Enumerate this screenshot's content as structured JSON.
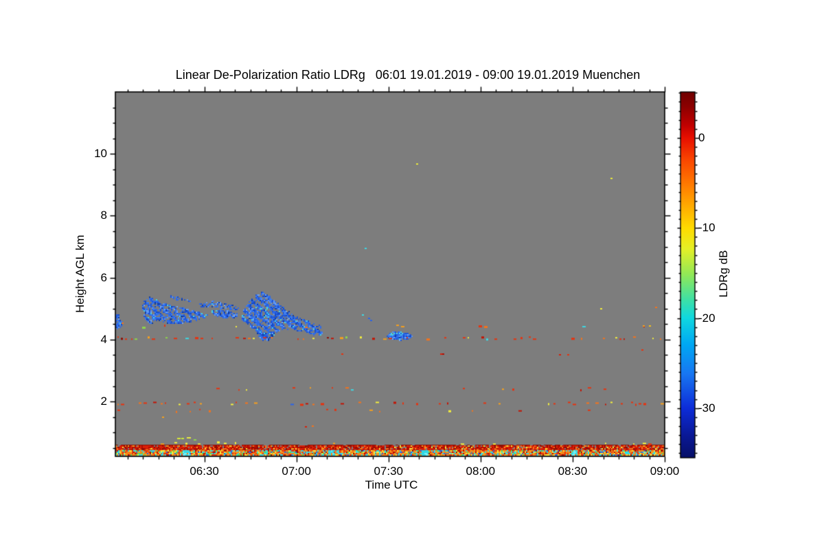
{
  "chart_data": {
    "type": "heatmap",
    "title": "Linear De-Polarization Ratio LDRg   06:01 19.01.2019 - 09:00 19.01.2019 Muenchen",
    "site": "Muenchen",
    "time_start": "06:01 19.01.2019",
    "time_end": "09:00 19.01.2019",
    "xlabel": "Time UTC",
    "ylabel": "Height AGL km",
    "x_range_minutes": [
      1,
      180
    ],
    "x_minor_step_minutes": 5,
    "x_ticks": [
      {
        "minute": 30,
        "label": "06:30"
      },
      {
        "minute": 60,
        "label": "07:00"
      },
      {
        "minute": 90,
        "label": "07:30"
      },
      {
        "minute": 120,
        "label": "08:00"
      },
      {
        "minute": 150,
        "label": "08:30"
      },
      {
        "minute": 180,
        "label": "09:00"
      }
    ],
    "y_range_km": [
      0.23,
      12.0
    ],
    "y_minor_step_km": 0.5,
    "y_ticks": [
      {
        "km": 10,
        "label": "10"
      },
      {
        "km": 8,
        "label": "8"
      },
      {
        "km": 6,
        "label": "6"
      },
      {
        "km": 4,
        "label": "4"
      },
      {
        "km": 2,
        "label": "2"
      }
    ],
    "grid": false,
    "legend": "colorbar-right",
    "colorbar": {
      "label": "LDRg dB",
      "range_db": [
        5.1,
        -35.5
      ],
      "minor_step_db": 1,
      "ticks": [
        {
          "db": 0,
          "label": "0"
        },
        {
          "db": -10,
          "label": "-10"
        },
        {
          "db": -20,
          "label": "-20"
        },
        {
          "db": -30,
          "label": "-30"
        }
      ],
      "gradient": [
        [
          0.0,
          "#700000"
        ],
        [
          0.04,
          "#8c0000"
        ],
        [
          0.09,
          "#c00000"
        ],
        [
          0.126,
          "#e81000"
        ],
        [
          0.19,
          "#fb4a00"
        ],
        [
          0.25,
          "#ff7800"
        ],
        [
          0.31,
          "#ffaa00"
        ],
        [
          0.373,
          "#ffdc00"
        ],
        [
          0.43,
          "#e4f028"
        ],
        [
          0.5,
          "#90e858"
        ],
        [
          0.57,
          "#3ce0a8"
        ],
        [
          0.618,
          "#10d8e0"
        ],
        [
          0.69,
          "#00a8f4"
        ],
        [
          0.77,
          "#1877f2"
        ],
        [
          0.865,
          "#0d2cd8"
        ],
        [
          0.94,
          "#0a1895"
        ],
        [
          1.0,
          "#071068"
        ]
      ]
    },
    "colors": {
      "background_no_signal": "#7d7d7d",
      "frame": "#000000",
      "page": "#ffffff",
      "cloud_blue": "#2e6ae8",
      "cyan_accent": "#45d5e6"
    },
    "palettes": {
      "blue_cloud": [
        [
          "#2e6ae8",
          0.33
        ],
        [
          "#1f55d6",
          0.2
        ],
        [
          "#3c7cee",
          0.15
        ],
        [
          "#174bc4",
          0.1
        ],
        [
          "#5b93f2",
          0.08
        ],
        [
          "#6fa6f5",
          0.05
        ],
        [
          "#123c9e",
          0.05
        ],
        [
          "#45d5e6",
          0.04
        ]
      ],
      "warm": [
        [
          "#e6330f",
          0.4
        ],
        [
          "#c21505",
          0.14
        ],
        [
          "#f4731c",
          0.18
        ],
        [
          "#f6a01e",
          0.1
        ],
        [
          "#f3ee3e",
          0.09
        ],
        [
          "#8fd64a",
          0.03
        ],
        [
          "#3cd9e4",
          0.03
        ],
        [
          "#2b63e8",
          0.02
        ],
        [
          "#8c0f04",
          0.01
        ]
      ],
      "yellow": [
        [
          "#f3ee3e",
          0.5
        ],
        [
          "#f6a01e",
          0.3
        ],
        [
          "#e6330f",
          0.1
        ],
        [
          "#8fd64a",
          0.1
        ]
      ],
      "red": [
        [
          "#d91f07",
          0.42
        ],
        [
          "#b00c02",
          0.2
        ],
        [
          "#8c0f04",
          0.13
        ],
        [
          "#f4731c",
          0.13
        ],
        [
          "#f6a01e",
          0.06
        ],
        [
          "#f3ee3e",
          0.03
        ],
        [
          "#7d7d7d",
          0.03
        ]
      ],
      "multi": [
        [
          "#f4821a",
          0.28
        ],
        [
          "#e6330f",
          0.14
        ],
        [
          "#f6a81e",
          0.12
        ],
        [
          "#3cd9e4",
          0.14
        ],
        [
          "#f3ee3e",
          0.1
        ],
        [
          "#b00c02",
          0.06
        ],
        [
          "#2b63e8",
          0.05
        ],
        [
          "#57dd52",
          0.05
        ],
        [
          "#8c0f04",
          0.03
        ],
        [
          "#0ee8f0",
          0.03
        ]
      ]
    },
    "features": {
      "clouds": [
        {
          "name": "edge-patch",
          "density": 0.85,
          "streaks": false,
          "polygon": [
            [
              1.0,
              4.81
            ],
            [
              1.9,
              4.85
            ],
            [
              2.6,
              4.76
            ],
            [
              2.1,
              4.65
            ],
            [
              3.0,
              4.59
            ],
            [
              3.7,
              4.52
            ],
            [
              2.8,
              4.41
            ],
            [
              1.7,
              4.34
            ],
            [
              1.0,
              4.39
            ]
          ]
        },
        {
          "name": "cloud-a",
          "density": 0.9,
          "streaks": true,
          "polygon": [
            [
              9.3,
              4.98
            ],
            [
              10.4,
              5.27
            ],
            [
              12.2,
              5.38
            ],
            [
              14.9,
              5.29
            ],
            [
              18.2,
              5.14
            ],
            [
              21.1,
              5.07
            ],
            [
              23.8,
              5.01
            ],
            [
              26.5,
              4.94
            ],
            [
              29.4,
              4.87
            ],
            [
              31.0,
              4.81
            ],
            [
              31.0,
              4.72
            ],
            [
              27.9,
              4.63
            ],
            [
              24.3,
              4.54
            ],
            [
              20.7,
              4.48
            ],
            [
              17.6,
              4.52
            ],
            [
              14.9,
              4.63
            ],
            [
              13.5,
              4.5
            ],
            [
              11.7,
              4.54
            ],
            [
              10.2,
              4.74
            ]
          ]
        },
        {
          "name": "cloud-a-wisp",
          "density": 0.55,
          "streaks": false,
          "polygon": [
            [
              18.9,
              5.43
            ],
            [
              22.4,
              5.36
            ],
            [
              25.4,
              5.28
            ],
            [
              25.4,
              5.21
            ],
            [
              21.8,
              5.26
            ],
            [
              18.9,
              5.32
            ]
          ]
        },
        {
          "name": "cloud-b-wisp",
          "density": 0.6,
          "streaks": false,
          "polygon": [
            [
              28.3,
              5.18
            ],
            [
              32.8,
              5.25
            ],
            [
              37.3,
              5.16
            ],
            [
              41.1,
              5.07
            ],
            [
              41.1,
              4.94
            ],
            [
              37.3,
              4.98
            ],
            [
              32.8,
              5.05
            ],
            [
              28.7,
              5.05
            ]
          ]
        },
        {
          "name": "cloud-b",
          "density": 0.85,
          "streaks": false,
          "polygon": [
            [
              32.1,
              4.94
            ],
            [
              35.0,
              4.98
            ],
            [
              37.9,
              4.94
            ],
            [
              40.6,
              4.85
            ],
            [
              41.1,
              4.76
            ],
            [
              39.0,
              4.67
            ],
            [
              35.5,
              4.7
            ],
            [
              32.8,
              4.81
            ]
          ]
        },
        {
          "name": "cloud-c",
          "density": 0.92,
          "streaks": true,
          "polygon": [
            [
              42.2,
              4.76
            ],
            [
              43.1,
              5.03
            ],
            [
              44.4,
              5.2
            ],
            [
              45.8,
              5.38
            ],
            [
              47.3,
              5.49
            ],
            [
              49.1,
              5.54
            ],
            [
              50.7,
              5.47
            ],
            [
              52.2,
              5.34
            ],
            [
              54.0,
              5.18
            ],
            [
              56.3,
              5.01
            ],
            [
              58.5,
              4.85
            ],
            [
              60.7,
              4.72
            ],
            [
              63.0,
              4.63
            ],
            [
              65.2,
              4.56
            ],
            [
              67.0,
              4.5
            ],
            [
              68.6,
              4.39
            ],
            [
              68.6,
              4.17
            ],
            [
              66.8,
              4.12
            ],
            [
              64.6,
              4.17
            ],
            [
              62.5,
              4.23
            ],
            [
              60.3,
              4.28
            ],
            [
              58.1,
              4.32
            ],
            [
              55.8,
              4.34
            ],
            [
              53.8,
              4.25
            ],
            [
              52.5,
              4.1
            ],
            [
              51.1,
              3.97
            ],
            [
              49.8,
              3.92
            ],
            [
              48.4,
              4.01
            ],
            [
              47.1,
              4.19
            ],
            [
              45.3,
              4.39
            ],
            [
              43.5,
              4.54
            ],
            [
              42.4,
              4.63
            ]
          ]
        },
        {
          "name": "blob-d",
          "density": 0.95,
          "streaks": false,
          "cyan_top": true,
          "polygon": [
            [
              89.4,
              4.12
            ],
            [
              90.3,
              4.21
            ],
            [
              91.6,
              4.25
            ],
            [
              93.4,
              4.25
            ],
            [
              95.2,
              4.23
            ],
            [
              96.8,
              4.19
            ],
            [
              97.9,
              4.12
            ],
            [
              97.4,
              4.03
            ],
            [
              95.9,
              3.99
            ],
            [
              93.9,
              3.97
            ],
            [
              91.9,
              3.99
            ],
            [
              90.1,
              4.03
            ]
          ]
        }
      ],
      "speckle_rows": [
        {
          "h_km": 4.06,
          "density": 0.22,
          "palette": "warm"
        },
        {
          "h_km": 4.44,
          "density": 0.035,
          "palette": "warm"
        },
        {
          "h_km": 1.95,
          "density": 0.2,
          "palette": "warm"
        },
        {
          "h_km": 2.42,
          "density": 0.05,
          "palette": "warm"
        },
        {
          "h_km": 1.72,
          "density": 0.06,
          "palette": "warm"
        },
        {
          "h_km": 0.67,
          "density": 0.05,
          "palette": "yellow"
        }
      ],
      "ground_bands": [
        {
          "h_top": 0.575,
          "h_bot": 0.44,
          "density": 0.94,
          "palette": "red"
        },
        {
          "h_top": 0.43,
          "h_bot": 0.26,
          "density": 0.97,
          "palette": "multi"
        }
      ],
      "cyan_blobs_minutes": [
        24,
        71.5,
        102,
        150.5
      ],
      "isolated_dots": [
        [
          99.2,
          9.67,
          "#e8e83c"
        ],
        [
          162.5,
          9.2,
          "#e8e83c"
        ],
        [
          82.4,
          6.95,
          "#3cd9e4"
        ],
        [
          159.2,
          5.0,
          "#f3ee3e"
        ],
        [
          177.2,
          5.05,
          "#f4731c"
        ],
        [
          3.2,
          4.54,
          "#f4731c"
        ],
        [
          81.5,
          4.8,
          "#3cd9e4"
        ],
        [
          83.5,
          4.68,
          "#2b63e8"
        ],
        [
          84.3,
          4.62,
          "#2b63e8"
        ],
        [
          173.0,
          4.45,
          "#f4a01e"
        ],
        [
          175.0,
          4.44,
          "#f6c31e"
        ],
        [
          172.6,
          3.66,
          "#e6330f"
        ],
        [
          145.8,
          3.52,
          "#d91f07"
        ],
        [
          148.5,
          3.52,
          "#e6330f"
        ],
        [
          74.8,
          3.54,
          "#e6330f"
        ],
        [
          107.0,
          3.54,
          "#d91f07"
        ],
        [
          107.8,
          3.54,
          "#b00c02"
        ],
        [
          16.4,
          1.49,
          "#f4a01e"
        ],
        [
          63.0,
          1.18,
          "#d91f07"
        ],
        [
          65.2,
          1.2,
          "#f4731c"
        ],
        [
          21.3,
          0.81,
          "#d8e838",
          5
        ],
        [
          22.8,
          0.81,
          "#c8e838",
          4
        ],
        [
          24.5,
          0.82,
          "#eaea40",
          6
        ],
        [
          26.7,
          0.76,
          "#8fd64a",
          4
        ]
      ]
    }
  }
}
